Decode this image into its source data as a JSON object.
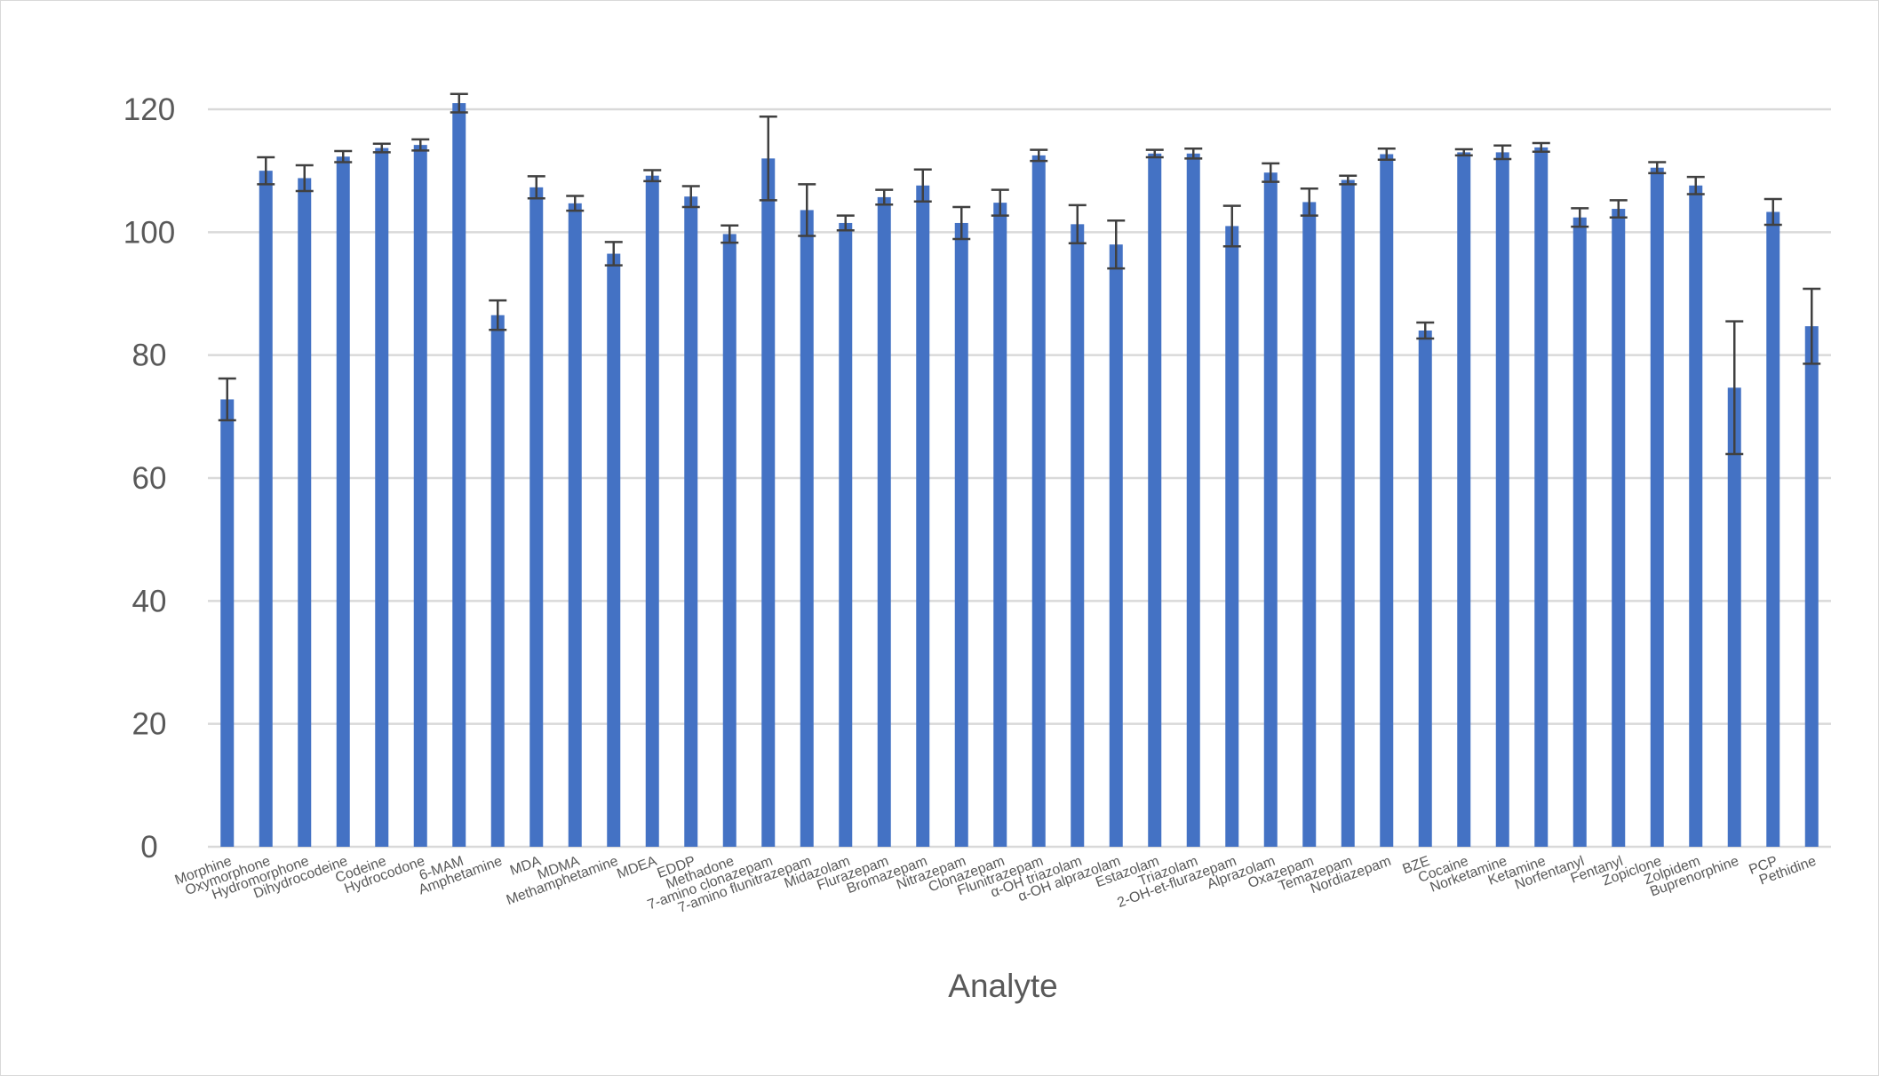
{
  "chart_data": {
    "type": "bar",
    "title": "",
    "xlabel": "Analyte",
    "ylabel": "",
    "ylim": [
      0,
      120
    ],
    "yticks": [
      0,
      20,
      40,
      60,
      80,
      100,
      120
    ],
    "grid": true,
    "legend": "none",
    "bar_color": "#4472c4",
    "error_bar_color": "#404040",
    "categories": [
      "Morphine",
      "Oxymorphone",
      "Hydromorphone",
      "Dihydrocodeine",
      "Codeine",
      "Hydrocodone",
      "6-MAM",
      "Amphetamine",
      "MDA",
      "MDMA",
      "Methamphetamine",
      "MDEA",
      "EDDP",
      "Methadone",
      "7-amino clonazepam",
      "7-amino flunitrazepam",
      "Midazolam",
      "Flurazepam",
      "Bromazepam",
      "Nitrazepam",
      "Clonazepam",
      "Flunitrazepam",
      "α-OH triazolam",
      "α-OH alprazolam",
      "Estazolam",
      "Triazolam",
      "2-OH-et-flurazepam",
      "Alprazolam",
      "Oxazepam",
      "Temazepam",
      "Nordiazepam",
      "BZE",
      "Cocaine",
      "Norketamine",
      "Ketamine",
      "Norfentanyl",
      "Fentanyl",
      "Zopiclone",
      "Zolpidem",
      "Buprenorphine",
      "PCP",
      "Pethidine"
    ],
    "series": [
      {
        "values": [
          72.8,
          110.0,
          108.8,
          112.3,
          113.7,
          114.2,
          121.0,
          86.5,
          107.3,
          104.7,
          96.5,
          109.2,
          105.8,
          99.7,
          112.0,
          103.6,
          101.5,
          105.7,
          107.6,
          101.5,
          104.8,
          112.5,
          101.3,
          98.0,
          112.8,
          112.8,
          101.0,
          109.7,
          104.9,
          108.5,
          112.7,
          84.0,
          113.0,
          113.0,
          113.8,
          102.4,
          103.8,
          110.5,
          107.6,
          74.7,
          103.3,
          84.7
        ],
        "errors": [
          3.4,
          2.2,
          2.1,
          0.9,
          0.7,
          0.9,
          1.5,
          2.4,
          1.8,
          1.2,
          1.9,
          0.9,
          1.7,
          1.4,
          6.8,
          4.2,
          1.2,
          1.2,
          2.6,
          2.6,
          2.1,
          0.9,
          3.1,
          3.9,
          0.6,
          0.8,
          3.3,
          1.5,
          2.2,
          0.7,
          0.9,
          1.3,
          0.5,
          1.1,
          0.7,
          1.5,
          1.4,
          0.9,
          1.4,
          10.8,
          2.1,
          6.1
        ]
      }
    ]
  }
}
